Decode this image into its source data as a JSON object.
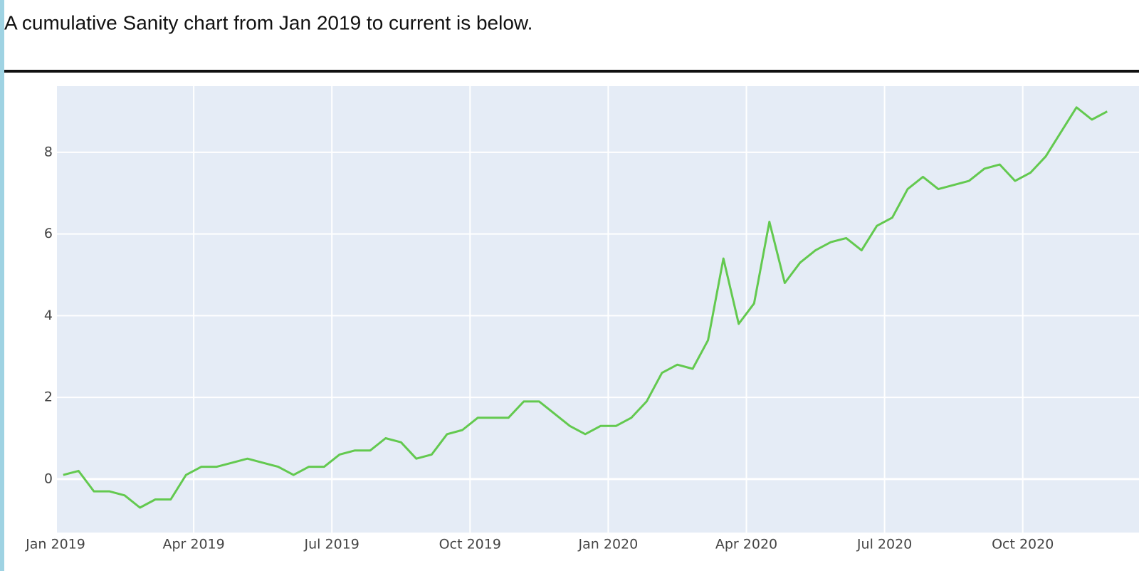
{
  "intro": "A cumulative Sanity chart from Jan 2019 to current is below.",
  "chart_data": {
    "type": "line",
    "color": "#63c94f",
    "grid": true,
    "x": [
      "2019-01",
      "2019-01",
      "2019-01",
      "2019-02",
      "2019-02",
      "2019-02",
      "2019-03",
      "2019-03",
      "2019-03",
      "2019-04",
      "2019-04",
      "2019-04",
      "2019-05",
      "2019-05",
      "2019-05",
      "2019-06",
      "2019-06",
      "2019-06",
      "2019-07",
      "2019-07",
      "2019-07",
      "2019-08",
      "2019-08",
      "2019-08",
      "2019-09",
      "2019-09",
      "2019-09",
      "2019-10",
      "2019-10",
      "2019-10",
      "2019-11",
      "2019-11",
      "2019-11",
      "2019-12",
      "2019-12",
      "2019-12",
      "2020-01",
      "2020-01",
      "2020-01",
      "2020-02",
      "2020-02",
      "2020-02",
      "2020-03",
      "2020-03",
      "2020-03",
      "2020-04",
      "2020-04",
      "2020-04",
      "2020-05",
      "2020-05",
      "2020-05",
      "2020-06",
      "2020-06",
      "2020-06",
      "2020-07",
      "2020-07",
      "2020-07",
      "2020-08",
      "2020-08",
      "2020-08",
      "2020-09",
      "2020-09",
      "2020-09",
      "2020-10",
      "2020-10",
      "2020-10",
      "2020-11",
      "2020-11",
      "2020-11"
    ],
    "values": [
      0.1,
      0.2,
      -0.3,
      -0.3,
      -0.4,
      -0.7,
      -0.5,
      -0.5,
      0.1,
      0.3,
      0.3,
      0.4,
      0.5,
      0.4,
      0.3,
      0.1,
      0.3,
      0.3,
      0.6,
      0.7,
      0.7,
      1.0,
      0.9,
      0.5,
      0.6,
      1.1,
      1.2,
      1.5,
      1.5,
      1.5,
      1.9,
      1.9,
      1.6,
      1.3,
      1.1,
      1.3,
      1.3,
      1.5,
      1.9,
      2.6,
      2.8,
      2.7,
      3.4,
      5.4,
      3.8,
      4.3,
      6.3,
      4.8,
      5.3,
      5.6,
      5.8,
      5.9,
      5.6,
      6.2,
      6.4,
      7.1,
      7.4,
      7.1,
      7.2,
      7.3,
      7.6,
      7.7,
      7.3,
      7.5,
      7.9,
      8.5,
      9.1,
      8.8,
      9.0
    ],
    "xlim": [
      "2019-01",
      "2020-12"
    ],
    "xticks": [
      {
        "value": "2019-01",
        "label": "Jan 2019"
      },
      {
        "value": "2019-04",
        "label": "Apr 2019"
      },
      {
        "value": "2019-07",
        "label": "Jul 2019"
      },
      {
        "value": "2019-10",
        "label": "Oct 2019"
      },
      {
        "value": "2020-01",
        "label": "Jan 2020"
      },
      {
        "value": "2020-04",
        "label": "Apr 2020"
      },
      {
        "value": "2020-07",
        "label": "Jul 2020"
      },
      {
        "value": "2020-10",
        "label": "Oct 2020"
      }
    ],
    "ylim": [
      -1.31,
      9.62
    ],
    "yticks": [
      0,
      2,
      4,
      6,
      8
    ]
  }
}
